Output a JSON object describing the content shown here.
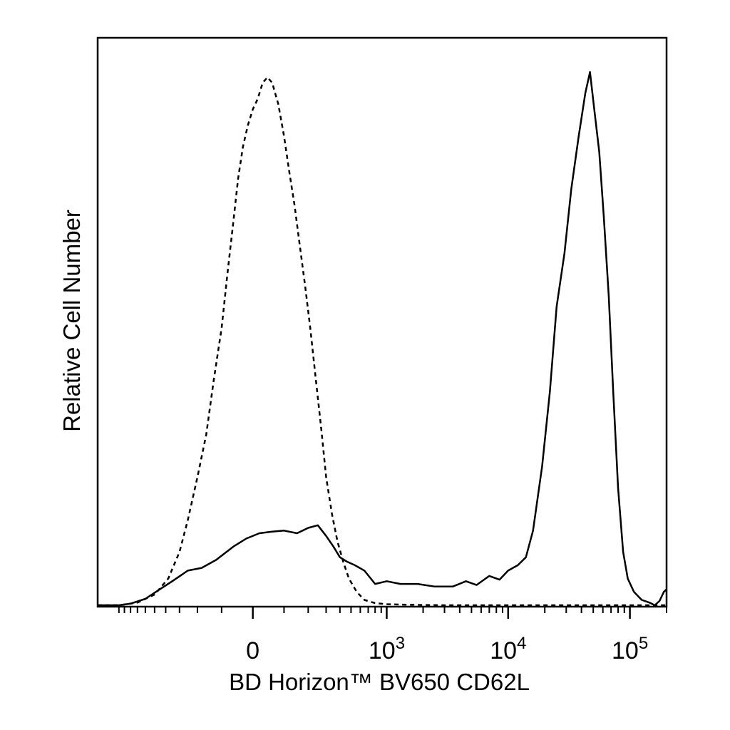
{
  "chart_data": {
    "type": "line",
    "title": "",
    "xlabel": "BD Horizon™ BV650 CD62L",
    "ylabel": "Relative Cell Number",
    "x_scale": "biexponential",
    "x_tick_labels": [
      {
        "base": "0",
        "exp": ""
      },
      {
        "base": "10",
        "exp": "3"
      },
      {
        "base": "10",
        "exp": "4"
      },
      {
        "base": "10",
        "exp": "5"
      }
    ],
    "x_tick_values": [
      0,
      1000,
      10000,
      100000
    ],
    "xlim": [
      -1500,
      200000
    ],
    "ylim": [
      0,
      100
    ],
    "grid": false,
    "legend": "none",
    "series": [
      {
        "style": "dashed",
        "color": "#000000",
        "points": [
          [
            -1500,
            0
          ],
          [
            -1000,
            0
          ],
          [
            -700,
            0.5
          ],
          [
            -500,
            2
          ],
          [
            -380,
            5
          ],
          [
            -300,
            10
          ],
          [
            -250,
            16
          ],
          [
            -200,
            24
          ],
          [
            -160,
            32
          ],
          [
            -130,
            42
          ],
          [
            -100,
            52
          ],
          [
            -80,
            62
          ],
          [
            -60,
            72
          ],
          [
            -45,
            80
          ],
          [
            -30,
            86
          ],
          [
            -15,
            90
          ],
          [
            0,
            93
          ],
          [
            15,
            95
          ],
          [
            30,
            98
          ],
          [
            45,
            99
          ],
          [
            60,
            98
          ],
          [
            80,
            94
          ],
          [
            100,
            88
          ],
          [
            120,
            81
          ],
          [
            140,
            75
          ],
          [
            160,
            68
          ],
          [
            185,
            60
          ],
          [
            210,
            52
          ],
          [
            240,
            42
          ],
          [
            270,
            33
          ],
          [
            300,
            24
          ],
          [
            340,
            17
          ],
          [
            380,
            12
          ],
          [
            430,
            8
          ],
          [
            480,
            5
          ],
          [
            560,
            2.5
          ],
          [
            650,
            1
          ],
          [
            800,
            0.4
          ],
          [
            1000,
            0.2
          ],
          [
            1500,
            0.1
          ],
          [
            3000,
            0
          ],
          [
            10000,
            0
          ],
          [
            100000,
            0
          ],
          [
            200000,
            0
          ]
        ]
      },
      {
        "style": "solid",
        "color": "#000000",
        "points": [
          [
            -1500,
            0
          ],
          [
            -1000,
            0
          ],
          [
            -800,
            0.3
          ],
          [
            -600,
            1.2
          ],
          [
            -450,
            3
          ],
          [
            -350,
            4.5
          ],
          [
            -250,
            6.5
          ],
          [
            -180,
            7
          ],
          [
            -120,
            8.5
          ],
          [
            -60,
            11
          ],
          [
            -20,
            12.5
          ],
          [
            20,
            13.5
          ],
          [
            60,
            13.8
          ],
          [
            100,
            14
          ],
          [
            150,
            13.5
          ],
          [
            200,
            14.5
          ],
          [
            250,
            15
          ],
          [
            300,
            13
          ],
          [
            350,
            11
          ],
          [
            400,
            9
          ],
          [
            460,
            8.2
          ],
          [
            540,
            7.5
          ],
          [
            650,
            6.5
          ],
          [
            800,
            4
          ],
          [
            1000,
            4.5
          ],
          [
            1300,
            4
          ],
          [
            1800,
            4
          ],
          [
            2500,
            3.5
          ],
          [
            3500,
            3.5
          ],
          [
            4500,
            4.5
          ],
          [
            5500,
            3.8
          ],
          [
            7000,
            5.5
          ],
          [
            8500,
            4.8
          ],
          [
            10000,
            6.5
          ],
          [
            12000,
            7.5
          ],
          [
            14000,
            9
          ],
          [
            16000,
            14
          ],
          [
            19000,
            26
          ],
          [
            22000,
            40
          ],
          [
            25000,
            56
          ],
          [
            29000,
            66
          ],
          [
            33000,
            78
          ],
          [
            38000,
            88
          ],
          [
            43000,
            96
          ],
          [
            47000,
            100
          ],
          [
            51000,
            93
          ],
          [
            56000,
            85
          ],
          [
            61000,
            73
          ],
          [
            67000,
            58
          ],
          [
            73000,
            40
          ],
          [
            80000,
            22
          ],
          [
            88000,
            10
          ],
          [
            96000,
            5
          ],
          [
            108000,
            2.5
          ],
          [
            125000,
            1
          ],
          [
            145000,
            0.5
          ],
          [
            160000,
            0
          ],
          [
            175000,
            0.8
          ],
          [
            190000,
            2.5
          ],
          [
            200000,
            3
          ]
        ]
      }
    ]
  }
}
